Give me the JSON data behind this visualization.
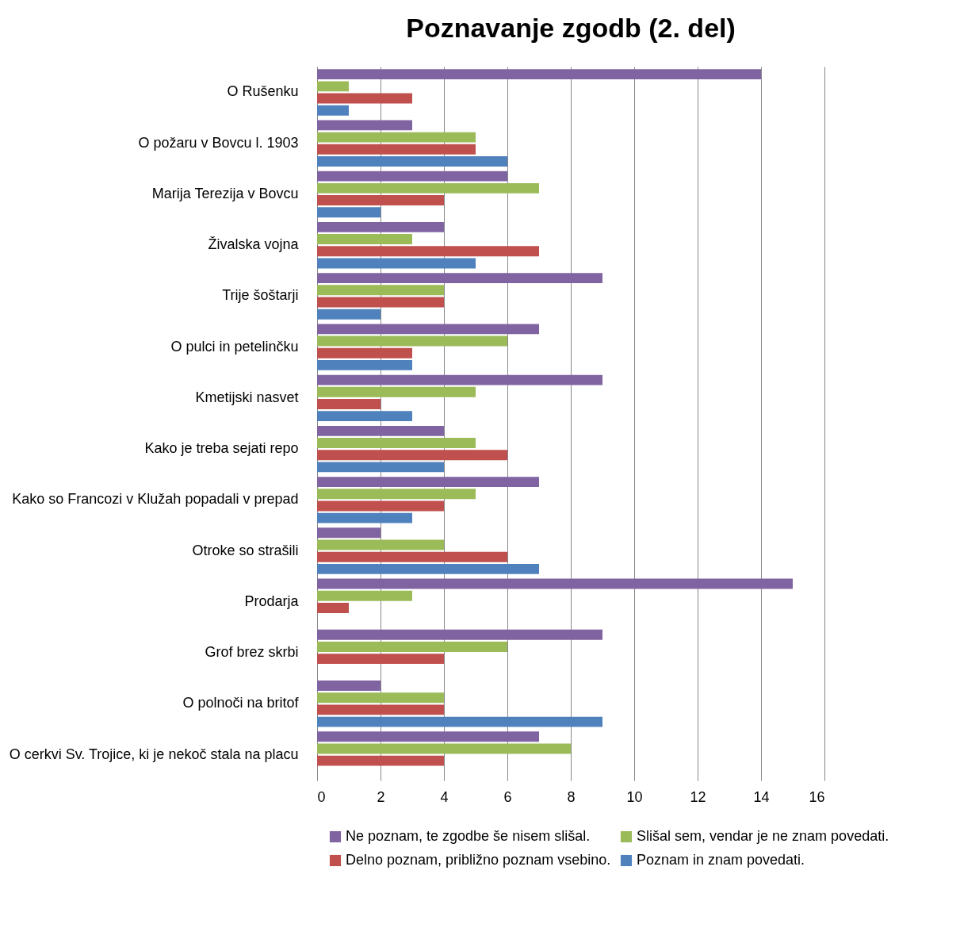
{
  "chart_data": {
    "type": "bar",
    "orientation": "horizontal",
    "title": "Poznavanje zgodb  (2. del)",
    "categories": [
      "O Rušenku",
      "O požaru v Bovcu l. 1903",
      "Marija Terezija v Bovcu",
      "Živalska vojna",
      "Trije šoštarji",
      "O pulci in petelinčku",
      "Kmetijski nasvet",
      "Kako je treba sejati repo",
      "Kako so Francozi v Klužah popadali v prepad",
      "Otroke so strašili",
      "Prodarja",
      "Grof brez skrbi",
      "O polnoči na britof",
      "O cerkvi Sv. Trojice, ki je nekoč stala na placu"
    ],
    "series": [
      {
        "name": "Ne poznam, te zgodbe še nisem slišal.",
        "color": "#8064a2",
        "values": [
          14,
          3,
          6,
          4,
          9,
          7,
          9,
          4,
          7,
          2,
          15,
          9,
          2,
          7
        ]
      },
      {
        "name": "Slišal sem, vendar je ne znam povedati.",
        "color": "#9bbb59",
        "values": [
          1,
          5,
          7,
          3,
          4,
          6,
          5,
          5,
          5,
          4,
          3,
          6,
          4,
          8
        ]
      },
      {
        "name": "Delno poznam, približno poznam vsebino.",
        "color": "#c0504d",
        "values": [
          3,
          5,
          4,
          7,
          4,
          3,
          2,
          6,
          4,
          6,
          1,
          4,
          4,
          4
        ]
      },
      {
        "name": "Poznam in znam povedati.",
        "color": "#4f81bd",
        "values": [
          1,
          6,
          2,
          5,
          2,
          3,
          3,
          4,
          3,
          7,
          0,
          0,
          9,
          0
        ]
      }
    ],
    "xlim": [
      0,
      16
    ],
    "xticks": [
      0,
      2,
      4,
      6,
      8,
      10,
      12,
      14,
      16
    ],
    "grid": "x",
    "legend": "bottom"
  }
}
